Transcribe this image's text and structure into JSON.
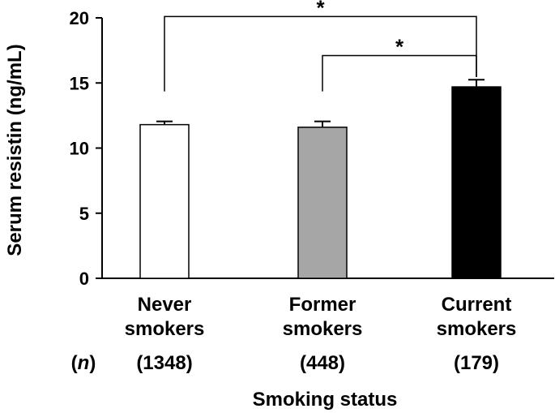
{
  "chart_data": {
    "type": "bar",
    "title": "",
    "xlabel": "Smoking status",
    "ylabel": "Serum resistin (ng/mL)",
    "ylim": [
      0,
      20
    ],
    "yticks": [
      0,
      5,
      10,
      15,
      20
    ],
    "grid": false,
    "categories": [
      {
        "line1": "Never",
        "line2": "smokers",
        "n": "(1348)"
      },
      {
        "line1": "Former",
        "line2": "smokers",
        "n": "(448)"
      },
      {
        "line1": "Current",
        "line2": "smokers",
        "n": "(179)"
      }
    ],
    "n_label": "(n)",
    "values": [
      11.8,
      11.6,
      14.7
    ],
    "errors": [
      0.25,
      0.45,
      0.55
    ],
    "colors": [
      "#ffffff",
      "#a6a6a6",
      "#000000"
    ],
    "significance": [
      {
        "from": 0,
        "to": 2,
        "label": "*",
        "top": 20.1
      },
      {
        "from": 1,
        "to": 2,
        "label": "*",
        "top": 17.1
      }
    ]
  }
}
